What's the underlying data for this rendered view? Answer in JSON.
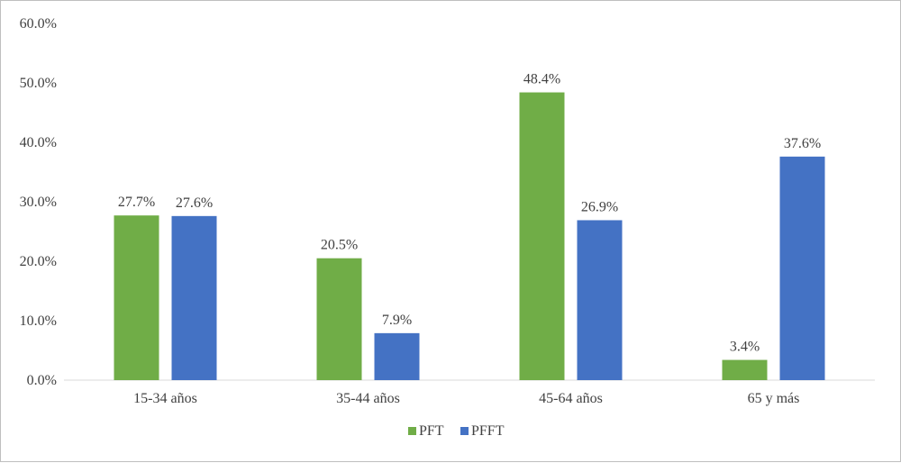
{
  "chart_data": {
    "type": "bar",
    "categories": [
      "15-34 años",
      "35-44 años",
      "45-64 años",
      "65 y más"
    ],
    "series": [
      {
        "name": "PFT",
        "values": [
          27.7,
          20.5,
          48.4,
          3.4
        ],
        "color": "#70ad47"
      },
      {
        "name": "PFFT",
        "values": [
          27.6,
          7.9,
          26.9,
          37.6
        ],
        "color": "#4472c4"
      }
    ],
    "ylim": [
      0,
      60
    ],
    "yticks": [
      0,
      10,
      20,
      30,
      40,
      50,
      60
    ],
    "tick_labels": [
      "0.0%",
      "10.0%",
      "20.0%",
      "30.0%",
      "40.0%",
      "50.0%",
      "60.0%"
    ],
    "data_labels": [
      [
        "27.7%",
        "20.5%",
        "48.4%",
        "3.4%"
      ],
      [
        "27.6%",
        "7.9%",
        "26.9%",
        "37.6%"
      ]
    ],
    "title": "",
    "xlabel": "",
    "ylabel": "",
    "grid": false,
    "legend_position": "bottom"
  }
}
